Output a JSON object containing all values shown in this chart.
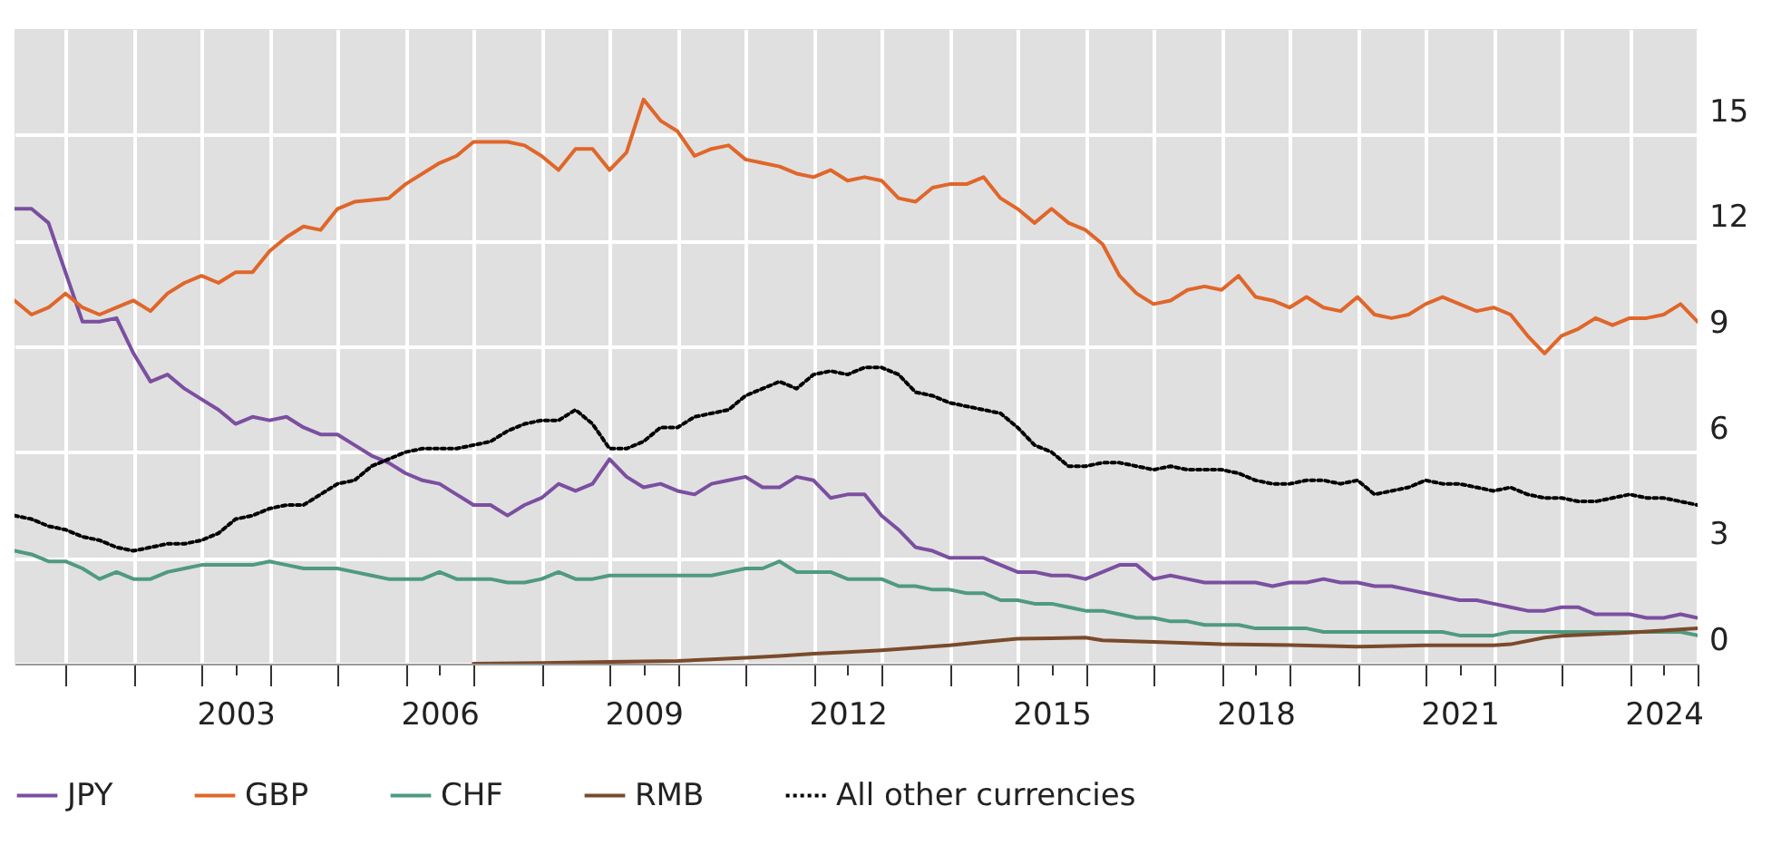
{
  "chart_data": {
    "type": "line",
    "x": [
      2000.25,
      2000.5,
      2000.75,
      2001,
      2001.25,
      2001.5,
      2001.75,
      2002,
      2002.25,
      2002.5,
      2002.75,
      2003,
      2003.25,
      2003.5,
      2003.75,
      2004,
      2004.25,
      2004.5,
      2004.75,
      2005,
      2005.25,
      2005.5,
      2005.75,
      2006,
      2006.25,
      2006.5,
      2006.75,
      2007,
      2007.25,
      2007.5,
      2007.75,
      2008,
      2008.25,
      2008.5,
      2008.75,
      2009,
      2009.25,
      2009.5,
      2009.75,
      2010,
      2010.25,
      2010.5,
      2010.75,
      2011,
      2011.25,
      2011.5,
      2011.75,
      2012,
      2012.25,
      2012.5,
      2012.75,
      2013,
      2013.25,
      2013.5,
      2013.75,
      2014,
      2014.25,
      2014.5,
      2014.75,
      2015,
      2015.25,
      2015.5,
      2015.75,
      2016,
      2016.25,
      2016.5,
      2016.75,
      2017,
      2017.25,
      2017.5,
      2017.75,
      2018,
      2018.25,
      2018.5,
      2018.75,
      2019,
      2019.25,
      2019.5,
      2019.75,
      2020,
      2020.25,
      2020.5,
      2020.75,
      2021,
      2021.25,
      2021.5,
      2021.75,
      2022,
      2022.25,
      2022.5,
      2022.75,
      2023,
      2023.25,
      2023.5,
      2023.75,
      2024,
      2024.25,
      2024.5,
      2024.75,
      2025
    ],
    "series": [
      {
        "name": "JPY",
        "color": "#7b4fa0",
        "values": [
          12.9,
          12.9,
          12.5,
          11.1,
          9.7,
          9.7,
          9.8,
          8.8,
          8.0,
          8.2,
          7.8,
          7.5,
          7.2,
          6.8,
          7.0,
          6.9,
          7.0,
          6.7,
          6.5,
          6.5,
          6.2,
          5.9,
          5.7,
          5.4,
          5.2,
          5.1,
          4.8,
          4.5,
          4.5,
          4.2,
          4.5,
          4.7,
          5.1,
          4.9,
          5.1,
          5.8,
          5.3,
          5.0,
          5.1,
          4.9,
          4.8,
          5.1,
          5.2,
          5.3,
          5.0,
          5.0,
          5.3,
          5.2,
          4.7,
          4.8,
          4.8,
          4.2,
          3.8,
          3.3,
          3.2,
          3.0,
          3.0,
          3.0,
          2.8,
          2.6,
          2.6,
          2.5,
          2.5,
          2.4,
          2.6,
          2.8,
          2.8,
          2.4,
          2.5,
          2.4,
          2.3,
          2.3,
          2.3,
          2.3,
          2.2,
          2.3,
          2.3,
          2.4,
          2.3,
          2.3,
          2.2,
          2.2,
          2.1,
          2.0,
          1.9,
          1.8,
          1.8,
          1.7,
          1.6,
          1.5,
          1.5,
          1.6,
          1.6,
          1.4,
          1.4,
          1.4,
          1.3,
          1.3,
          1.4,
          1.3
        ]
      },
      {
        "name": "GBP",
        "color": "#e0662a",
        "x": [
          2000.25,
          2000.5,
          2000.75,
          2001,
          2001.25,
          2001.5,
          2001.75,
          2002,
          2002.25,
          2002.5,
          2002.75,
          2003,
          2003.25,
          2003.5,
          2003.75,
          2004,
          2004.25,
          2004.5,
          2004.75,
          2005,
          2005.25,
          2005.75,
          2006,
          2006.5,
          2006.75,
          2007,
          2007.5,
          2007.75,
          2008,
          2008.25,
          2008.5,
          2008.75,
          2009,
          2009.25,
          2009.5,
          2009.75,
          2010,
          2010.25,
          2010.5,
          2010.75,
          2011,
          2011.25,
          2011.5,
          2011.75,
          2012,
          2012.25,
          2012.5,
          2012.75,
          2013,
          2013.25,
          2013.5,
          2013.75,
          2014,
          2014.25,
          2014.5,
          2014.75,
          2015,
          2015.25,
          2015.5,
          2015.75,
          2016,
          2016.25,
          2016.5,
          2016.75,
          2017,
          2017.25,
          2017.5,
          2017.75,
          2018,
          2018.25,
          2018.5,
          2018.75,
          2019,
          2019.25,
          2019.5,
          2019.75,
          2020,
          2020.25,
          2020.5,
          2020.75,
          2021,
          2021.25,
          2021.5,
          2021.75,
          2022,
          2022.25,
          2022.5,
          2022.75,
          2023,
          2023.25,
          2023.5,
          2023.75,
          2024,
          2024.25,
          2024.5,
          2024.75,
          2025
        ],
        "values": [
          10.3,
          9.9,
          10.1,
          10.5,
          10.1,
          9.9,
          10.1,
          10.3,
          10.0,
          10.5,
          10.8,
          11.0,
          10.8,
          11.1,
          11.1,
          11.7,
          12.1,
          12.4,
          12.3,
          12.9,
          13.1,
          13.2,
          13.6,
          14.2,
          14.4,
          14.8,
          14.8,
          14.7,
          14.4,
          14.0,
          14.6,
          14.6,
          14.0,
          14.5,
          16.0,
          15.4,
          15.1,
          14.4,
          14.6,
          14.7,
          14.3,
          14.2,
          14.1,
          13.9,
          13.8,
          14.0,
          13.7,
          13.8,
          13.7,
          13.2,
          13.1,
          13.5,
          13.6,
          13.6,
          13.8,
          13.2,
          12.9,
          12.5,
          12.9,
          12.5,
          12.3,
          11.9,
          11.0,
          10.5,
          10.2,
          10.3,
          10.6,
          10.7,
          10.6,
          11.0,
          10.4,
          10.3,
          10.1,
          10.4,
          10.1,
          10.0,
          10.4,
          9.9,
          9.8,
          9.9,
          10.2,
          10.4,
          10.2,
          10.0,
          10.1,
          9.9,
          9.3,
          8.8,
          9.3,
          9.5,
          9.8,
          9.6,
          9.8,
          9.8,
          9.9,
          10.2,
          9.7
        ]
      },
      {
        "name": "CHF",
        "color": "#4f9a80",
        "values": [
          3.2,
          3.1,
          2.9,
          2.9,
          2.7,
          2.4,
          2.6,
          2.4,
          2.4,
          2.6,
          2.7,
          2.8,
          2.8,
          2.8,
          2.8,
          2.9,
          2.8,
          2.7,
          2.7,
          2.7,
          2.6,
          2.5,
          2.4,
          2.4,
          2.4,
          2.6,
          2.4,
          2.4,
          2.4,
          2.3,
          2.3,
          2.4,
          2.6,
          2.4,
          2.4,
          2.5,
          2.5,
          2.5,
          2.5,
          2.5,
          2.5,
          2.5,
          2.6,
          2.7,
          2.7,
          2.9,
          2.6,
          2.6,
          2.6,
          2.4,
          2.4,
          2.4,
          2.2,
          2.2,
          2.1,
          2.1,
          2.0,
          2.0,
          1.8,
          1.8,
          1.7,
          1.7,
          1.6,
          1.5,
          1.5,
          1.4,
          1.3,
          1.3,
          1.2,
          1.2,
          1.1,
          1.1,
          1.1,
          1.0,
          1.0,
          1.0,
          1.0,
          0.9,
          0.9,
          0.9,
          0.9,
          0.9,
          0.9,
          0.9,
          0.9,
          0.8,
          0.8,
          0.8,
          0.9,
          0.9,
          0.9,
          0.9,
          0.9,
          0.9,
          0.9,
          0.9,
          0.9,
          0.9,
          0.9,
          0.8
        ]
      },
      {
        "name": "RMB",
        "color": "#7a4a2a",
        "x": [
          2007,
          2008,
          2009,
          2010,
          2010.5,
          2011,
          2011.5,
          2012,
          2012.5,
          2013,
          2013.5,
          2014,
          2014.5,
          2015,
          2015.5,
          2016,
          2016.25,
          2017,
          2018,
          2019,
          2020,
          2021,
          2022,
          2022.25,
          2022.75,
          2023,
          2024,
          2025
        ],
        "values": [
          0.0,
          0.02,
          0.05,
          0.08,
          0.12,
          0.17,
          0.22,
          0.28,
          0.33,
          0.38,
          0.45,
          0.52,
          0.62,
          0.71,
          0.72,
          0.74,
          0.66,
          0.62,
          0.55,
          0.53,
          0.48,
          0.52,
          0.52,
          0.55,
          0.74,
          0.79,
          0.88,
          1.0
        ]
      },
      {
        "name": "All other currencies",
        "color": "#000000",
        "line_style": "dotted",
        "values": [
          4.2,
          4.1,
          3.9,
          3.8,
          3.6,
          3.5,
          3.3,
          3.2,
          3.3,
          3.4,
          3.4,
          3.5,
          3.7,
          4.1,
          4.2,
          4.4,
          4.5,
          4.5,
          4.8,
          5.1,
          5.2,
          5.6,
          5.8,
          6.0,
          6.1,
          6.1,
          6.1,
          6.2,
          6.3,
          6.6,
          6.8,
          6.9,
          6.9,
          7.2,
          6.8,
          6.1,
          6.1,
          6.3,
          6.7,
          6.7,
          7.0,
          7.1,
          7.2,
          7.6,
          7.8,
          8.0,
          7.8,
          8.2,
          8.3,
          8.2,
          8.4,
          8.4,
          8.2,
          7.7,
          7.6,
          7.4,
          7.3,
          7.2,
          7.1,
          6.7,
          6.2,
          6.0,
          5.6,
          5.6,
          5.7,
          5.7,
          5.6,
          5.5,
          5.6,
          5.5,
          5.5,
          5.5,
          5.4,
          5.2,
          5.1,
          5.1,
          5.2,
          5.2,
          5.1,
          5.2,
          4.8,
          4.9,
          5.0,
          5.2,
          5.1,
          5.1,
          5.0,
          4.9,
          5.0,
          4.8,
          4.7,
          4.7,
          4.6,
          4.6,
          4.7,
          4.8,
          4.7,
          4.7,
          4.6,
          4.5
        ]
      }
    ],
    "xlim": [
      2000.25,
      2025
    ],
    "xticks": [
      {
        "value": 2001,
        "label": null
      },
      {
        "value": 2002,
        "label": null
      },
      {
        "value": 2003,
        "label": null
      },
      {
        "value": 2003.5,
        "label": "2003"
      },
      {
        "value": 2004,
        "label": null
      },
      {
        "value": 2005,
        "label": null
      },
      {
        "value": 2006,
        "label": null
      },
      {
        "value": 2006.5,
        "label": "2006"
      },
      {
        "value": 2007,
        "label": null
      },
      {
        "value": 2008,
        "label": null
      },
      {
        "value": 2009,
        "label": null
      },
      {
        "value": 2009.5,
        "label": "2009"
      },
      {
        "value": 2010,
        "label": null
      },
      {
        "value": 2011,
        "label": null
      },
      {
        "value": 2012,
        "label": null
      },
      {
        "value": 2012.5,
        "label": "2012"
      },
      {
        "value": 2013,
        "label": null
      },
      {
        "value": 2014,
        "label": null
      },
      {
        "value": 2015,
        "label": null
      },
      {
        "value": 2015.5,
        "label": "2015"
      },
      {
        "value": 2016,
        "label": null
      },
      {
        "value": 2017,
        "label": null
      },
      {
        "value": 2018,
        "label": null
      },
      {
        "value": 2018.5,
        "label": "2018"
      },
      {
        "value": 2019,
        "label": null
      },
      {
        "value": 2020,
        "label": null
      },
      {
        "value": 2021,
        "label": null
      },
      {
        "value": 2021.5,
        "label": "2021"
      },
      {
        "value": 2022,
        "label": null
      },
      {
        "value": 2023,
        "label": null
      },
      {
        "value": 2024,
        "label": null
      },
      {
        "value": 2024.5,
        "label": "2024"
      },
      {
        "value": 2025,
        "label": null
      }
    ],
    "ylim": [
      0,
      18
    ],
    "yticks": [
      0,
      3,
      6,
      9,
      12,
      15
    ],
    "grid": true,
    "legend": "bottom",
    "line_style": "solid",
    "marker": "none"
  }
}
